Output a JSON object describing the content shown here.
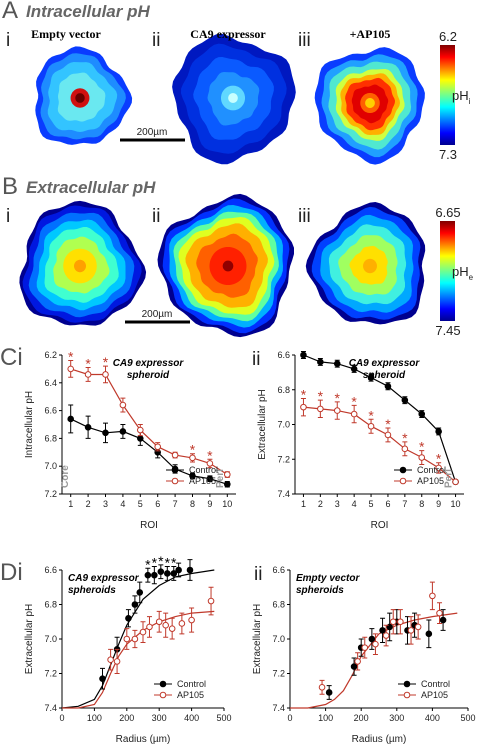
{
  "figure": {
    "A": {
      "letter": "A",
      "title": "Intracellular pH",
      "numerals": [
        "i",
        "ii",
        "iii"
      ],
      "captions": [
        "Empty vector",
        "CA9 expressor",
        "+AP105"
      ],
      "scale_bar": "200µm",
      "colorbar": {
        "top": 6.2,
        "bottom": 7.3,
        "label": "pH",
        "label_sub": "i"
      }
    },
    "B": {
      "letter": "B",
      "title": "Extracellular pH",
      "numerals": [
        "i",
        "ii",
        "iii"
      ],
      "scale_bar": "200µm",
      "colorbar": {
        "top": 6.65,
        "bottom": 7.45,
        "label": "pH",
        "label_sub": "e"
      }
    },
    "C": {
      "letter": "Ci",
      "second": "ii"
    },
    "D": {
      "letter": "Di",
      "second": "ii"
    }
  },
  "chart_data": [
    {
      "type": "line",
      "title": [
        "CA9 expressor",
        "spheroid"
      ],
      "x_label": "ROI",
      "y_label": "Intracellular pH",
      "x": [
        1,
        2,
        3,
        4,
        5,
        6,
        7,
        8,
        9,
        10
      ],
      "xlim": [
        0.5,
        10.5
      ],
      "xticks": [
        1,
        2,
        3,
        4,
        5,
        6,
        7,
        8,
        9,
        10
      ],
      "ylim": [
        6.2,
        7.2
      ],
      "y_inverted": true,
      "yticks": [
        6.2,
        6.4,
        6.6,
        6.8,
        {
          "value": 7,
          "label": "7.0"
        },
        7.2
      ],
      "series": [
        {
          "name": "Control",
          "color": "#000000",
          "marker": "filled",
          "values": [
            6.66,
            6.72,
            6.76,
            6.75,
            6.8,
            6.9,
            7.02,
            7.07,
            7.09,
            7.13
          ],
          "errors": [
            0.1,
            0.08,
            0.07,
            0.05,
            0.05,
            0.04,
            0.03,
            0.02,
            0.02,
            0.02
          ]
        },
        {
          "name": "AP105",
          "color": "#c0392b",
          "marker": "open",
          "values": [
            6.3,
            6.34,
            6.34,
            6.56,
            6.74,
            6.86,
            6.92,
            6.94,
            6.98,
            7.06
          ],
          "errors": [
            0.06,
            0.05,
            0.06,
            0.05,
            0.04,
            0.03,
            0.02,
            0.03,
            0.03,
            0.02
          ]
        }
      ],
      "stars": {
        "text": "*",
        "series": 1,
        "indices": [
          0,
          1,
          2,
          7,
          8
        ]
      },
      "left_note": "Core",
      "right_note": "Peri",
      "legend": "lower right"
    },
    {
      "type": "line",
      "title": [
        "CA9 expressor",
        "spheroid"
      ],
      "x_label": "ROI",
      "y_label": "Extracellular pH",
      "x": [
        1,
        2,
        3,
        4,
        5,
        6,
        7,
        8,
        9,
        10
      ],
      "xlim": [
        0.5,
        10.5
      ],
      "xticks": [
        1,
        2,
        3,
        4,
        5,
        6,
        7,
        8,
        9,
        10
      ],
      "ylim": [
        6.6,
        7.4
      ],
      "y_inverted": true,
      "yticks": [
        6.6,
        6.8,
        {
          "value": 7,
          "label": "7.0"
        },
        7.2,
        7.4
      ],
      "series": [
        {
          "name": "Control",
          "color": "#000000",
          "marker": "filled",
          "values": [
            6.6,
            6.64,
            6.65,
            6.68,
            6.73,
            6.78,
            6.86,
            6.94,
            7.04,
            7.33
          ],
          "errors": [
            0.02,
            0.02,
            0.02,
            0.02,
            0.02,
            0.02,
            0.02,
            0.02,
            0.02,
            0.01
          ]
        },
        {
          "name": "AP105",
          "color": "#c0392b",
          "marker": "open",
          "values": [
            6.9,
            6.91,
            6.92,
            6.94,
            7.01,
            7.06,
            7.14,
            7.19,
            7.25,
            7.33
          ],
          "errors": [
            0.05,
            0.05,
            0.05,
            0.05,
            0.04,
            0.04,
            0.04,
            0.04,
            0.03,
            0.01
          ]
        }
      ],
      "stars": {
        "text": "*",
        "series": 1,
        "indices": [
          0,
          1,
          2,
          3,
          4,
          5,
          6,
          7,
          8
        ]
      },
      "right_note": "Peri",
      "legend": "lower right"
    },
    {
      "type": "scatter",
      "title": [
        "CA9 expressor",
        "spheroids"
      ],
      "x_label": "Radius (µm)",
      "y_label": "Extracellular pH",
      "xlim": [
        0,
        500
      ],
      "xticks": [
        0,
        100,
        200,
        300,
        400,
        500
      ],
      "ylim": [
        6.6,
        7.4
      ],
      "y_inverted": true,
      "yticks": [
        6.6,
        6.8,
        {
          "value": 7,
          "label": "7.0"
        },
        7.2,
        7.4
      ],
      "series": [
        {
          "name": "Control",
          "color": "#000000",
          "marker": "filled",
          "x": [
            125,
            170,
            205,
            225,
            240,
            265,
            285,
            305,
            325,
            345,
            360,
            395
          ],
          "values": [
            7.23,
            7.06,
            6.88,
            6.8,
            6.73,
            6.63,
            6.63,
            6.61,
            6.62,
            6.62,
            6.6,
            6.6
          ],
          "errors": [
            0.06,
            0.07,
            0.05,
            0.05,
            0.06,
            0.04,
            0.05,
            0.04,
            0.04,
            0.04,
            0.04,
            0.06
          ]
        },
        {
          "name": "AP105",
          "color": "#c0392b",
          "marker": "open",
          "x": [
            150,
            170,
            200,
            225,
            250,
            270,
            300,
            320,
            340,
            370,
            400,
            460
          ],
          "values": [
            7.12,
            7.13,
            7,
            7,
            6.96,
            6.93,
            6.9,
            6.92,
            6.94,
            6.91,
            6.89,
            6.78
          ],
          "errors": [
            0.06,
            0.07,
            0.06,
            0.05,
            0.06,
            0.06,
            0.06,
            0.07,
            0.06,
            0.06,
            0.07,
            0.08
          ]
        }
      ],
      "fits": [
        {
          "color": "#000000",
          "x": [
            0,
            50,
            100,
            125,
            150,
            175,
            200,
            250,
            300,
            350,
            400,
            470
          ],
          "values": [
            7.4,
            7.39,
            7.35,
            7.27,
            7.15,
            7.03,
            6.92,
            6.77,
            6.69,
            6.64,
            6.62,
            6.6
          ]
        },
        {
          "color": "#c0392b",
          "x": [
            0,
            50,
            100,
            125,
            150,
            175,
            200,
            250,
            300,
            350,
            400,
            470
          ],
          "values": [
            7.4,
            7.4,
            7.38,
            7.31,
            7.2,
            7.1,
            7.03,
            6.95,
            6.9,
            6.87,
            6.85,
            6.84
          ]
        }
      ],
      "stars": {
        "text": "*",
        "series": 0,
        "indices": [
          5,
          6,
          7,
          8,
          9
        ]
      },
      "legend": "lower right"
    },
    {
      "type": "scatter",
      "title": [
        "Empty vector",
        "spheroids"
      ],
      "x_label": "Radius (µm)",
      "y_label": "Extracellular pH",
      "xlim": [
        0,
        500
      ],
      "xticks": [
        0,
        100,
        200,
        300,
        400,
        500
      ],
      "ylim": [
        6.6,
        7.4
      ],
      "y_inverted": true,
      "yticks": [
        6.6,
        6.8,
        {
          "value": 7,
          "label": "7.0"
        },
        7.2,
        7.4
      ],
      "series": [
        {
          "name": "Control",
          "color": "#000000",
          "marker": "filled",
          "x": [
            110,
            180,
            200,
            230,
            260,
            280,
            300,
            330,
            350,
            390,
            430
          ],
          "values": [
            7.31,
            7.16,
            7.05,
            7,
            6.95,
            6.93,
            6.9,
            6.95,
            6.92,
            6.97,
            6.89
          ],
          "errors": [
            0.04,
            0.05,
            0.05,
            0.06,
            0.07,
            0.08,
            0.07,
            0.08,
            0.07,
            0.08,
            0.06
          ]
        },
        {
          "name": "AP105",
          "color": "#c0392b",
          "marker": "open",
          "x": [
            90,
            190,
            210,
            240,
            270,
            290,
            310,
            340,
            360,
            400,
            420
          ],
          "values": [
            7.28,
            7.13,
            7.05,
            7.03,
            6.98,
            6.9,
            6.9,
            6.95,
            6.93,
            6.75,
            6.85
          ],
          "errors": [
            0.04,
            0.05,
            0.06,
            0.06,
            0.06,
            0.07,
            0.07,
            0.08,
            0.07,
            0.08,
            0.06
          ]
        }
      ],
      "fits": [
        {
          "color": "#c0392b",
          "x": [
            0,
            50,
            100,
            125,
            150,
            175,
            200,
            250,
            300,
            350,
            400,
            470
          ],
          "values": [
            7.4,
            7.4,
            7.38,
            7.35,
            7.3,
            7.21,
            7.1,
            6.97,
            6.92,
            6.89,
            6.87,
            6.85
          ]
        }
      ],
      "legend": "lower right"
    }
  ]
}
